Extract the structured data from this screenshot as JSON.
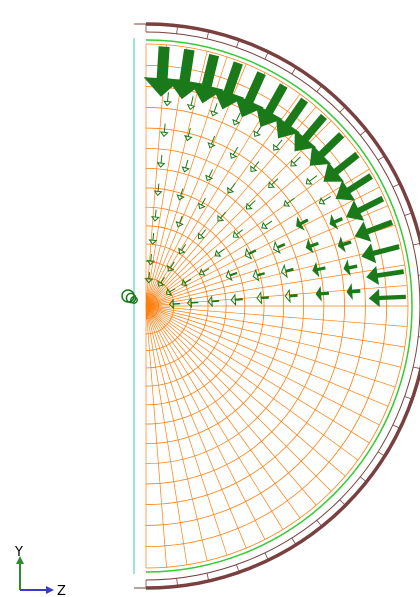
{
  "viewport": {
    "background": "#ffffff",
    "mesh_color": "#ff7f0e",
    "load_arrow_color": "#1a7a1a",
    "outer_ring_color": "#7a4040",
    "inner_outline_color": "#33cc33",
    "axis_line_color": "#5fd0d0"
  },
  "triad": {
    "y_label": "Y",
    "z_label": "Z",
    "y_axis_color": "#2e8b2e",
    "z_axis_color": "#3a3acc"
  }
}
